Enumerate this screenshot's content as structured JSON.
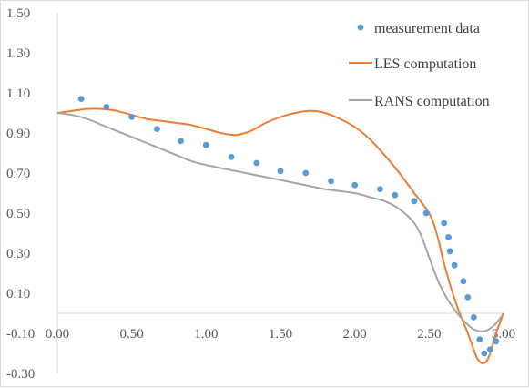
{
  "chart_data": {
    "type": "scatter",
    "xlim": [
      0,
      3.0
    ],
    "ylim": [
      -0.3,
      1.5
    ],
    "x_ticks": [
      "0.00",
      "0.50",
      "1.00",
      "1.50",
      "2.00",
      "2.50",
      "3.00"
    ],
    "y_ticks": [
      "-0.30",
      "-0.10",
      "0.10",
      "0.30",
      "0.50",
      "0.70",
      "0.90",
      "1.10",
      "1.30",
      "1.50"
    ],
    "grid": false,
    "legend_position": "top-right",
    "series": [
      {
        "name": "measurement data",
        "kind": "markers",
        "color": "#5b9bd5",
        "points": [
          [
            0.16,
            1.07
          ],
          [
            0.33,
            1.03
          ],
          [
            0.5,
            0.98
          ],
          [
            0.67,
            0.92
          ],
          [
            0.83,
            0.86
          ],
          [
            1.0,
            0.84
          ],
          [
            1.17,
            0.78
          ],
          [
            1.34,
            0.75
          ],
          [
            1.5,
            0.71
          ],
          [
            1.67,
            0.7
          ],
          [
            1.84,
            0.66
          ],
          [
            2.0,
            0.64
          ],
          [
            2.17,
            0.62
          ],
          [
            2.27,
            0.59
          ],
          [
            2.4,
            0.56
          ],
          [
            2.48,
            0.5
          ],
          [
            2.6,
            0.45
          ],
          [
            2.63,
            0.38
          ],
          [
            2.64,
            0.31
          ],
          [
            2.67,
            0.24
          ],
          [
            2.73,
            0.16
          ],
          [
            2.76,
            0.08
          ],
          [
            2.8,
            -0.02
          ],
          [
            2.84,
            -0.13
          ],
          [
            2.87,
            -0.2
          ],
          [
            2.91,
            -0.18
          ],
          [
            2.95,
            -0.14
          ]
        ]
      },
      {
        "name": "LES computation",
        "kind": "line",
        "color": "#ed7d31",
        "points": [
          [
            0.0,
            1.0
          ],
          [
            0.1,
            1.01
          ],
          [
            0.2,
            1.02
          ],
          [
            0.3,
            1.02
          ],
          [
            0.4,
            1.01
          ],
          [
            0.5,
            0.99
          ],
          [
            0.6,
            0.97
          ],
          [
            0.7,
            0.96
          ],
          [
            0.8,
            0.95
          ],
          [
            0.9,
            0.94
          ],
          [
            1.0,
            0.92
          ],
          [
            1.1,
            0.9
          ],
          [
            1.2,
            0.89
          ],
          [
            1.3,
            0.91
          ],
          [
            1.4,
            0.95
          ],
          [
            1.5,
            0.98
          ],
          [
            1.6,
            1.0
          ],
          [
            1.7,
            1.01
          ],
          [
            1.8,
            1.0
          ],
          [
            1.9,
            0.97
          ],
          [
            2.0,
            0.93
          ],
          [
            2.1,
            0.87
          ],
          [
            2.2,
            0.79
          ],
          [
            2.3,
            0.7
          ],
          [
            2.4,
            0.6
          ],
          [
            2.5,
            0.5
          ],
          [
            2.55,
            0.4
          ],
          [
            2.6,
            0.25
          ],
          [
            2.65,
            0.12
          ],
          [
            2.7,
            0.01
          ],
          [
            2.75,
            -0.08
          ],
          [
            2.78,
            -0.14
          ],
          [
            2.82,
            -0.22
          ],
          [
            2.86,
            -0.25
          ],
          [
            2.9,
            -0.22
          ],
          [
            2.95,
            -0.1
          ],
          [
            3.0,
            0.0
          ]
        ]
      },
      {
        "name": "RANS computation",
        "kind": "line",
        "color": "#a5a5a5",
        "points": [
          [
            0.0,
            1.0
          ],
          [
            0.1,
            0.99
          ],
          [
            0.2,
            0.97
          ],
          [
            0.3,
            0.94
          ],
          [
            0.4,
            0.91
          ],
          [
            0.5,
            0.88
          ],
          [
            0.6,
            0.85
          ],
          [
            0.7,
            0.82
          ],
          [
            0.8,
            0.79
          ],
          [
            0.9,
            0.76
          ],
          [
            1.0,
            0.74
          ],
          [
            1.2,
            0.71
          ],
          [
            1.4,
            0.68
          ],
          [
            1.6,
            0.65
          ],
          [
            1.8,
            0.62
          ],
          [
            2.0,
            0.6
          ],
          [
            2.1,
            0.58
          ],
          [
            2.2,
            0.56
          ],
          [
            2.3,
            0.52
          ],
          [
            2.4,
            0.45
          ],
          [
            2.45,
            0.38
          ],
          [
            2.5,
            0.28
          ],
          [
            2.55,
            0.18
          ],
          [
            2.6,
            0.1
          ],
          [
            2.65,
            0.04
          ],
          [
            2.7,
            -0.01
          ],
          [
            2.75,
            -0.05
          ],
          [
            2.8,
            -0.08
          ],
          [
            2.86,
            -0.09
          ],
          [
            2.9,
            -0.08
          ],
          [
            2.95,
            -0.05
          ],
          [
            3.0,
            0.0
          ]
        ]
      }
    ]
  }
}
